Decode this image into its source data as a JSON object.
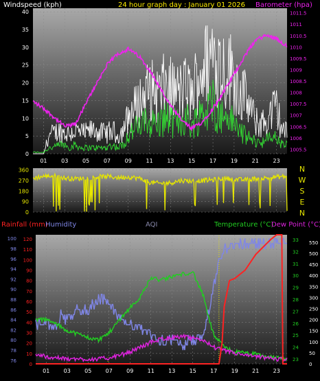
{
  "colors": {
    "background": "#000000",
    "wind_speed": "#ffffff",
    "wind_gust": "#ffffff",
    "wind_avg": "#33dd33",
    "barometer": "#ee22ee",
    "wind_dir": "#e6e600",
    "rainfall": "#ff2222",
    "humidity": "#7f86e6",
    "temperature": "#22cc22",
    "dew_point": "#dd22dd",
    "aqi": "#8888aa"
  },
  "chart_data": [
    {
      "type": "line",
      "id": "wind_baro",
      "title": "24 hour graph day : January 01 2026",
      "left_label": "Windspeed (kph)",
      "right_label": "Barometer (hpa)",
      "x_ticks": [
        "01",
        "03",
        "05",
        "07",
        "09",
        "11",
        "13",
        "15",
        "17",
        "19",
        "21",
        "23"
      ],
      "y_left_ticks": [
        0,
        5,
        10,
        15,
        20,
        25,
        30,
        35,
        40
      ],
      "y_left_range": [
        0,
        41
      ],
      "y_right_ticks": [
        "1005.5",
        "1006",
        "1006.5",
        "1007",
        "1007.5",
        "1008",
        "1008.5",
        "1009",
        "1009.5",
        "1010",
        "1010.5",
        "1011",
        "1011.5"
      ],
      "y_right_range": [
        1005.3,
        1011.7
      ],
      "grid": true,
      "series": [
        {
          "name": "Windspeed (kph)",
          "role": "speed_max",
          "x": [
            0,
            1,
            1.5,
            2,
            2.5,
            3,
            3.5,
            4,
            4.5,
            5,
            5.5,
            6,
            6.5,
            7,
            7.5,
            8,
            8.5,
            9,
            9.5,
            10,
            10.5,
            11,
            11.5,
            12,
            12.5,
            13,
            13.5,
            14,
            14.5,
            15,
            15.5,
            16,
            16.5,
            17,
            17.5,
            18,
            18.5,
            19,
            19.5,
            20,
            20.5,
            21,
            21.5,
            22,
            22.5,
            23,
            23.5,
            24
          ],
          "values": [
            0,
            0,
            7,
            8,
            9,
            8,
            8,
            9,
            8,
            8,
            9,
            9,
            8,
            8,
            9,
            7,
            9,
            14,
            17,
            20,
            22,
            25,
            24,
            23,
            27,
            25,
            24,
            24,
            26,
            22,
            30,
            33,
            35,
            40,
            36,
            33,
            33,
            30,
            25,
            22,
            18,
            12,
            12,
            12,
            16,
            18,
            10,
            8
          ]
        },
        {
          "name": "Windspeed (kph)",
          "role": "speed_avg",
          "x": [
            0,
            1,
            1.5,
            2,
            2.5,
            3,
            3.5,
            4,
            4.5,
            5,
            5.5,
            6,
            6.5,
            7,
            7.5,
            8,
            8.5,
            9,
            9.5,
            10,
            10.5,
            11,
            11.5,
            12,
            12.5,
            13,
            13.5,
            14,
            14.5,
            15,
            15.5,
            16,
            16.5,
            17,
            17.5,
            18,
            18.5,
            19,
            19.5,
            20,
            20.5,
            21,
            21.5,
            22,
            22.5,
            23,
            23.5,
            24
          ],
          "values": [
            0.5,
            0.5,
            2,
            2,
            3,
            3,
            2,
            3,
            2,
            2,
            2,
            2,
            2,
            2,
            3,
            2,
            3,
            6,
            8,
            9,
            10,
            11,
            10,
            10,
            12,
            11,
            10,
            11,
            12,
            9,
            12,
            14,
            14,
            18,
            13,
            12,
            12,
            10,
            8,
            6,
            5,
            4,
            4,
            4,
            6,
            5,
            3,
            3
          ]
        },
        {
          "name": "Barometer (hpa)",
          "x": [
            0,
            1,
            2,
            3,
            4,
            5,
            6,
            7,
            8,
            9,
            10,
            11,
            12,
            13,
            14,
            15,
            16,
            17,
            18,
            19,
            20,
            21,
            22,
            23,
            24
          ],
          "values": [
            1007.6,
            1007.3,
            1006.9,
            1006.5,
            1006.6,
            1007.5,
            1008.4,
            1009.2,
            1009.7,
            1009.9,
            1009.6,
            1009.0,
            1008.2,
            1007.4,
            1006.8,
            1006.4,
            1006.7,
            1007.3,
            1008.0,
            1008.8,
            1009.6,
            1010.3,
            1010.5,
            1010.4,
            1010.0
          ]
        }
      ]
    },
    {
      "type": "line",
      "id": "wind_dir",
      "y_ticks": [
        0,
        90,
        180,
        270,
        360
      ],
      "y_range": [
        0,
        375
      ],
      "compass_labels": [
        "N",
        "W",
        "S",
        "E",
        "N"
      ],
      "series": [
        {
          "name": "Wind direction",
          "x": [
            0,
            1,
            2,
            3,
            4,
            5,
            6,
            7,
            8,
            9,
            10,
            11,
            12,
            13,
            14,
            15,
            16,
            17,
            18,
            19,
            20,
            21,
            22,
            23,
            24
          ],
          "values": [
            290,
            305,
            310,
            290,
            285,
            290,
            300,
            305,
            295,
            300,
            290,
            255,
            245,
            250,
            270,
            265,
            270,
            275,
            290,
            280,
            275,
            285,
            290,
            300,
            305
          ]
        }
      ]
    },
    {
      "type": "line",
      "id": "rain_hum_temp",
      "top_labels": [
        "Rainfall (mm)",
        "Humidity",
        "AQI",
        "Temperature (°C)",
        "Dew Point (°C)"
      ],
      "x_ticks": [
        "01",
        "03",
        "05",
        "07",
        "09",
        "11",
        "13",
        "15",
        "17",
        "19",
        "21",
        "23"
      ],
      "y_rain_ticks": [
        0,
        10,
        20,
        30,
        40,
        50,
        60,
        70,
        80,
        90,
        100,
        110,
        120
      ],
      "y_rain_range": [
        0,
        124
      ],
      "y_hum_ticks": [
        76,
        78,
        80,
        82,
        84,
        86,
        88,
        90,
        92,
        94,
        96,
        98,
        100
      ],
      "y_hum_range": [
        75.3,
        100.7
      ],
      "y_temp_ticks": [
        23,
        24,
        25,
        26,
        27,
        28,
        29,
        30,
        31,
        32,
        33
      ],
      "y_temp_range": [
        22.6,
        33.4
      ],
      "y_aqi_ticks": [
        0,
        50,
        100,
        150,
        200,
        250,
        300,
        350,
        400,
        450,
        500,
        550
      ],
      "y_aqi_range": [
        0,
        584
      ],
      "grid": true,
      "series": [
        {
          "name": "Rainfall (mm)",
          "x": [
            0,
            17.5,
            17.8,
            18,
            18.5,
            19,
            20,
            21,
            22,
            22.5,
            23,
            23.3,
            23.5,
            23.6,
            24
          ],
          "values": [
            0,
            0,
            20,
            55,
            80,
            82,
            90,
            105,
            115,
            120,
            124,
            124,
            124,
            0,
            0
          ]
        },
        {
          "name": "Humidity",
          "x": [
            0,
            2,
            2.5,
            3,
            4,
            5,
            5.5,
            6,
            6.5,
            7,
            7.5,
            8,
            9,
            10,
            11,
            12,
            13,
            14,
            15,
            16,
            16.5,
            17,
            17.5,
            18,
            19,
            20,
            21,
            22,
            23,
            24
          ],
          "values": [
            83,
            83,
            85,
            84,
            86,
            86,
            87,
            88,
            88,
            87,
            86,
            84,
            83,
            82,
            81,
            80,
            80,
            79,
            80,
            81,
            85,
            90,
            95,
            98,
            99,
            99,
            99,
            99,
            99,
            99
          ]
        },
        {
          "name": "Temperature (°C)",
          "x": [
            0,
            1,
            2,
            3,
            4,
            5,
            6,
            7,
            8,
            9,
            10,
            11,
            12,
            13,
            14,
            15,
            16,
            16.5,
            17,
            18,
            19,
            20,
            21,
            22,
            23,
            24
          ],
          "values": [
            26.3,
            26.3,
            25.9,
            25.4,
            25.1,
            24.8,
            24.6,
            25.2,
            26.3,
            27.3,
            28.2,
            29.8,
            29.6,
            29.9,
            30.1,
            30.3,
            28.3,
            26.5,
            25.0,
            24.0,
            23.6,
            23.5,
            23.4,
            23.2,
            23.1,
            23.0
          ]
        },
        {
          "name": "Dew Point (°C)",
          "x": [
            0,
            1,
            2,
            3,
            4,
            5,
            6,
            7,
            8,
            9,
            10,
            11,
            12,
            13,
            14,
            15,
            16,
            17,
            18,
            19,
            20,
            21,
            22,
            23,
            24
          ],
          "values": [
            23.4,
            23.2,
            23.1,
            23.0,
            23.0,
            23.0,
            23.0,
            23.1,
            23.3,
            23.6,
            24.0,
            24.4,
            24.7,
            24.8,
            24.9,
            24.7,
            24.6,
            24.0,
            23.7,
            23.5,
            23.3,
            23.2,
            23.1,
            23.0,
            23.0
          ]
        },
        {
          "name": "AQI",
          "x": [
            6.9,
            6.9
          ],
          "values": [
            0,
            30
          ]
        },
        {
          "name": "AQI",
          "x": [
            17.5,
            17.5
          ],
          "values": [
            0,
            580
          ]
        }
      ]
    }
  ],
  "hour_labels": [
    "01",
    "03",
    "05",
    "07",
    "09",
    "11",
    "13",
    "15",
    "17",
    "19",
    "21",
    "23"
  ]
}
